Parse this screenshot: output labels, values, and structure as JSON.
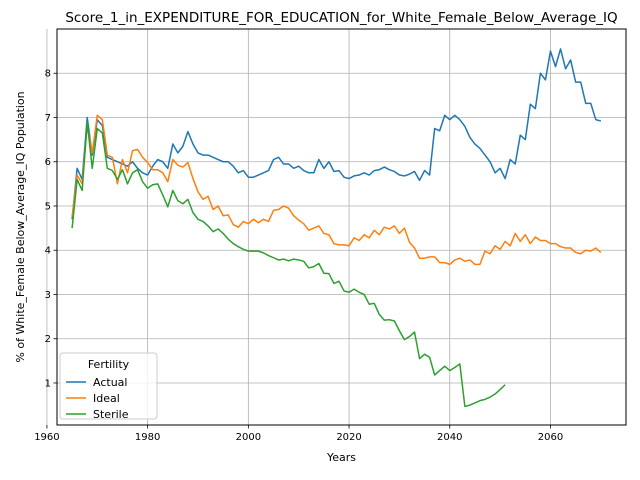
{
  "chart_data": {
    "type": "line",
    "title": "Score_1_in_EXPENDITURE_FOR_EDUCATION_for_White_Female_Below_Average_IQ",
    "xlabel": "Years",
    "ylabel": "% of White_Female Below_Average_IQ Population",
    "xlim": [
      1962,
      2075
    ],
    "ylim": [
      0.05,
      9.0
    ],
    "xticks": [
      1960,
      1980,
      2000,
      2020,
      2040,
      2060
    ],
    "yticks": [
      1,
      2,
      3,
      4,
      5,
      6,
      7,
      8
    ],
    "grid": true,
    "legend_title": "Fertility",
    "legend_position": "lower-left",
    "series": [
      {
        "name": "Actual",
        "color": "#1f77b4",
        "x": [
          1965,
          1966,
          1967,
          1968,
          1969,
          1970,
          1971,
          1972,
          1973,
          1974,
          1975,
          1976,
          1977,
          1978,
          1979,
          1980,
          1981,
          1982,
          1983,
          1984,
          1985,
          1986,
          1987,
          1988,
          1989,
          1990,
          1991,
          1992,
          1993,
          1994,
          1995,
          1996,
          1997,
          1998,
          1999,
          2000,
          2001,
          2002,
          2003,
          2004,
          2005,
          2006,
          2007,
          2008,
          2009,
          2010,
          2011,
          2012,
          2013,
          2014,
          2015,
          2016,
          2017,
          2018,
          2019,
          2020,
          2021,
          2022,
          2023,
          2024,
          2025,
          2026,
          2027,
          2028,
          2029,
          2030,
          2031,
          2032,
          2033,
          2034,
          2035,
          2036,
          2037,
          2038,
          2039,
          2040,
          2041,
          2042,
          2043,
          2044,
          2045,
          2046,
          2047,
          2048,
          2049,
          2050,
          2051,
          2052,
          2053,
          2054,
          2055,
          2056,
          2057,
          2058,
          2059,
          2060,
          2061,
          2062,
          2063,
          2064,
          2065,
          2066,
          2067,
          2068,
          2069,
          2070
        ],
        "values": [
          4.7,
          5.85,
          5.6,
          7.0,
          6.15,
          6.95,
          6.82,
          6.1,
          6.05,
          6.0,
          5.95,
          5.9,
          6.0,
          5.85,
          5.75,
          5.7,
          5.9,
          6.05,
          6.0,
          5.85,
          6.4,
          6.2,
          6.35,
          6.68,
          6.4,
          6.2,
          6.15,
          6.15,
          6.1,
          6.05,
          6.0,
          6.0,
          5.9,
          5.75,
          5.8,
          5.65,
          5.65,
          5.7,
          5.75,
          5.8,
          6.05,
          6.1,
          5.95,
          5.95,
          5.85,
          5.9,
          5.8,
          5.75,
          5.75,
          6.05,
          5.85,
          6.0,
          5.78,
          5.8,
          5.65,
          5.62,
          5.68,
          5.7,
          5.75,
          5.7,
          5.8,
          5.82,
          5.88,
          5.82,
          5.78,
          5.7,
          5.68,
          5.72,
          5.78,
          5.58,
          5.8,
          5.7,
          6.75,
          6.7,
          7.05,
          6.95,
          7.05,
          6.95,
          6.8,
          6.55,
          6.4,
          6.3,
          6.15,
          6.0,
          5.75,
          5.85,
          5.62,
          6.05,
          5.95,
          6.6,
          6.5,
          7.3,
          7.2,
          8.0,
          7.85,
          8.5,
          8.15,
          8.55,
          8.1,
          8.3,
          7.8,
          7.8,
          7.32,
          7.32,
          6.95,
          6.92
        ]
      },
      {
        "name": "Ideal",
        "color": "#ff7f0e",
        "x": [
          1965,
          1966,
          1967,
          1968,
          1969,
          1970,
          1971,
          1972,
          1973,
          1974,
          1975,
          1976,
          1977,
          1978,
          1979,
          1980,
          1981,
          1982,
          1983,
          1984,
          1985,
          1986,
          1987,
          1988,
          1989,
          1990,
          1991,
          1992,
          1993,
          1994,
          1995,
          1996,
          1997,
          1998,
          1999,
          2000,
          2001,
          2002,
          2003,
          2004,
          2005,
          2006,
          2007,
          2008,
          2009,
          2010,
          2011,
          2012,
          2013,
          2014,
          2015,
          2016,
          2017,
          2018,
          2019,
          2020,
          2021,
          2022,
          2023,
          2024,
          2025,
          2026,
          2027,
          2028,
          2029,
          2030,
          2031,
          2032,
          2033,
          2034,
          2035,
          2036,
          2037,
          2038,
          2039,
          2040,
          2041,
          2042,
          2043,
          2044,
          2045,
          2046,
          2047,
          2048,
          2049,
          2050,
          2051,
          2052,
          2053,
          2054,
          2055,
          2056,
          2057,
          2058,
          2059,
          2060,
          2061,
          2062,
          2063,
          2064,
          2065,
          2066,
          2067,
          2068,
          2069,
          2070
        ],
        "values": [
          4.75,
          5.7,
          5.5,
          6.82,
          6.2,
          7.05,
          6.95,
          6.15,
          6.1,
          5.5,
          6.05,
          5.75,
          6.25,
          6.28,
          6.1,
          5.98,
          5.82,
          5.82,
          5.75,
          5.55,
          6.05,
          5.92,
          5.88,
          5.98,
          5.62,
          5.32,
          5.15,
          5.22,
          4.92,
          5.0,
          4.78,
          4.8,
          4.58,
          4.52,
          4.65,
          4.6,
          4.7,
          4.62,
          4.7,
          4.65,
          4.9,
          4.92,
          5.0,
          4.95,
          4.78,
          4.68,
          4.6,
          4.45,
          4.5,
          4.55,
          4.38,
          4.35,
          4.15,
          4.12,
          4.12,
          4.1,
          4.28,
          4.22,
          4.35,
          4.28,
          4.45,
          4.35,
          4.52,
          4.48,
          4.55,
          4.38,
          4.5,
          4.18,
          4.05,
          3.82,
          3.82,
          3.85,
          3.85,
          3.72,
          3.72,
          3.68,
          3.78,
          3.82,
          3.75,
          3.78,
          3.68,
          3.68,
          3.98,
          3.92,
          4.1,
          4.02,
          4.2,
          4.1,
          4.38,
          4.2,
          4.35,
          4.15,
          4.3,
          4.22,
          4.22,
          4.15,
          4.15,
          4.08,
          4.05,
          4.05,
          3.95,
          3.92,
          4.0,
          3.98,
          4.05,
          3.95
        ]
      },
      {
        "name": "Sterile",
        "color": "#2ca02c",
        "x": [
          1965,
          1966,
          1967,
          1968,
          1969,
          1970,
          1971,
          1972,
          1973,
          1974,
          1975,
          1976,
          1977,
          1978,
          1979,
          1980,
          1981,
          1982,
          1983,
          1984,
          1985,
          1986,
          1987,
          1988,
          1989,
          1990,
          1991,
          1992,
          1993,
          1994,
          1995,
          1996,
          1997,
          1998,
          1999,
          2000,
          2001,
          2002,
          2003,
          2004,
          2005,
          2006,
          2007,
          2008,
          2009,
          2010,
          2011,
          2012,
          2013,
          2014,
          2015,
          2016,
          2017,
          2018,
          2019,
          2020,
          2021,
          2022,
          2023,
          2024,
          2025,
          2026,
          2027,
          2028,
          2029,
          2030,
          2031,
          2032,
          2033,
          2034,
          2035,
          2036,
          2037,
          2038,
          2039,
          2040,
          2041,
          2042,
          2043,
          2044,
          2045,
          2046,
          2047,
          2048,
          2049,
          2050,
          2051
        ],
        "values": [
          4.5,
          5.6,
          5.35,
          6.9,
          5.85,
          6.75,
          6.65,
          5.85,
          5.8,
          5.6,
          5.82,
          5.5,
          5.75,
          5.82,
          5.55,
          5.4,
          5.48,
          5.5,
          5.25,
          4.98,
          5.35,
          5.12,
          5.05,
          5.15,
          4.85,
          4.7,
          4.65,
          4.55,
          4.42,
          4.48,
          4.38,
          4.25,
          4.15,
          4.08,
          4.02,
          3.98,
          3.98,
          3.98,
          3.94,
          3.88,
          3.83,
          3.78,
          3.8,
          3.76,
          3.8,
          3.78,
          3.75,
          3.6,
          3.63,
          3.7,
          3.48,
          3.47,
          3.25,
          3.3,
          3.08,
          3.05,
          3.12,
          3.05,
          3.0,
          2.78,
          2.8,
          2.55,
          2.42,
          2.43,
          2.4,
          2.18,
          1.98,
          2.05,
          2.15,
          1.55,
          1.65,
          1.58,
          1.18,
          1.28,
          1.38,
          1.28,
          1.35,
          1.43,
          0.47,
          0.5,
          0.55,
          0.6,
          0.63,
          0.68,
          0.75,
          0.85,
          0.96
        ]
      }
    ]
  }
}
